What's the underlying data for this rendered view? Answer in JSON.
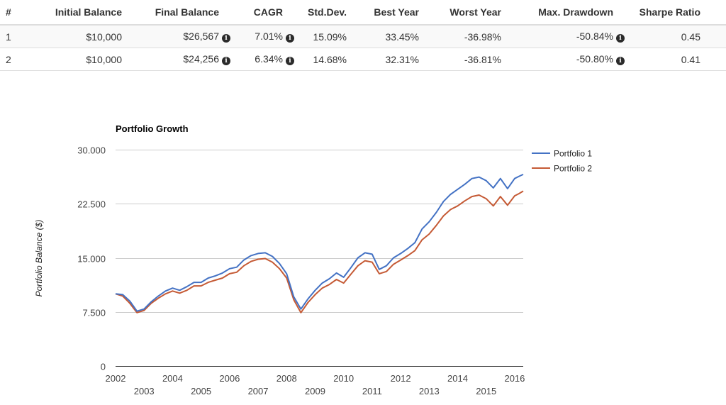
{
  "table": {
    "headers": [
      "#",
      "Initial Balance",
      "Final Balance",
      "CAGR",
      "Std.Dev.",
      "Best Year",
      "Worst Year",
      "Max. Drawdown",
      "Sharpe Ratio"
    ],
    "rows": [
      {
        "index": "1",
        "initial": "$10,000",
        "final": "$26,567",
        "cagr": "7.01%",
        "std": "15.09%",
        "best": "33.45%",
        "worst": "-36.98%",
        "drawdown": "-50.84%",
        "sharpe": "0.45"
      },
      {
        "index": "2",
        "initial": "$10,000",
        "final": "$24,256",
        "cagr": "6.34%",
        "std": "14.68%",
        "best": "32.31%",
        "worst": "-36.81%",
        "drawdown": "-50.80%",
        "sharpe": "0.41"
      }
    ],
    "info_icon_glyph": "i"
  },
  "chart_data": {
    "type": "line",
    "title": "Portfolio Growth",
    "xlabel": "",
    "ylabel": "Portfolio Balance ($)",
    "ylim": [
      0,
      30000
    ],
    "xlim": [
      2002.0,
      2016.3
    ],
    "y_ticks": [
      0,
      7500,
      15000,
      22500,
      30000
    ],
    "y_tick_labels": [
      "0",
      "7.500",
      "15.000",
      "22.500",
      "30.000"
    ],
    "x_tick_labels_top": [
      "2002",
      "2004",
      "2006",
      "2008",
      "2010",
      "2012",
      "2014",
      "2016"
    ],
    "x_tick_labels_bottom": [
      "2003",
      "2005",
      "2007",
      "2009",
      "2011",
      "2013",
      "2015"
    ],
    "legend_position": "top-right",
    "grid": true,
    "series": [
      {
        "name": "Portfolio 1",
        "color": "#4472c4",
        "x": [
          2002.0,
          2002.25,
          2002.5,
          2002.75,
          2003.0,
          2003.25,
          2003.5,
          2003.75,
          2004.0,
          2004.25,
          2004.5,
          2004.75,
          2005.0,
          2005.25,
          2005.5,
          2005.75,
          2006.0,
          2006.25,
          2006.5,
          2006.75,
          2007.0,
          2007.25,
          2007.5,
          2007.75,
          2008.0,
          2008.25,
          2008.5,
          2008.75,
          2009.0,
          2009.25,
          2009.5,
          2009.75,
          2010.0,
          2010.25,
          2010.5,
          2010.75,
          2011.0,
          2011.25,
          2011.5,
          2011.75,
          2012.0,
          2012.25,
          2012.5,
          2012.75,
          2013.0,
          2013.25,
          2013.5,
          2013.75,
          2014.0,
          2014.25,
          2014.5,
          2014.75,
          2015.0,
          2015.25,
          2015.5,
          2015.75,
          2016.0,
          2016.15,
          2016.3
        ],
        "values": [
          10000,
          9900,
          9000,
          7600,
          7900,
          8900,
          9700,
          10400,
          10800,
          10500,
          11000,
          11600,
          11600,
          12200,
          12500,
          12900,
          13500,
          13700,
          14700,
          15300,
          15600,
          15700,
          15200,
          14200,
          12800,
          9600,
          7900,
          9300,
          10500,
          11500,
          12100,
          12900,
          12300,
          13600,
          15000,
          15700,
          15500,
          13400,
          13900,
          15000,
          15600,
          16300,
          17100,
          19000,
          20000,
          21300,
          22800,
          23800,
          24500,
          25200,
          26000,
          26200,
          25700,
          24700,
          26000,
          24600,
          26000,
          26300,
          26567
        ]
      },
      {
        "name": "Portfolio 2",
        "color": "#c55a35",
        "x": [
          2002.0,
          2002.25,
          2002.5,
          2002.75,
          2003.0,
          2003.25,
          2003.5,
          2003.75,
          2004.0,
          2004.25,
          2004.5,
          2004.75,
          2005.0,
          2005.25,
          2005.5,
          2005.75,
          2006.0,
          2006.25,
          2006.5,
          2006.75,
          2007.0,
          2007.25,
          2007.5,
          2007.75,
          2008.0,
          2008.25,
          2008.5,
          2008.75,
          2009.0,
          2009.25,
          2009.5,
          2009.75,
          2010.0,
          2010.25,
          2010.5,
          2010.75,
          2011.0,
          2011.25,
          2011.5,
          2011.75,
          2012.0,
          2012.25,
          2012.5,
          2012.75,
          2013.0,
          2013.25,
          2013.5,
          2013.75,
          2014.0,
          2014.25,
          2014.5,
          2014.75,
          2015.0,
          2015.25,
          2015.5,
          2015.75,
          2016.0,
          2016.15,
          2016.3
        ],
        "values": [
          10000,
          9700,
          8700,
          7400,
          7700,
          8700,
          9400,
          10000,
          10400,
          10100,
          10500,
          11100,
          11100,
          11600,
          11900,
          12200,
          12800,
          13000,
          13900,
          14500,
          14800,
          14900,
          14400,
          13500,
          12200,
          9200,
          7400,
          8800,
          9900,
          10800,
          11300,
          12000,
          11500,
          12700,
          13900,
          14600,
          14400,
          12800,
          13100,
          14100,
          14700,
          15300,
          16000,
          17500,
          18300,
          19500,
          20800,
          21700,
          22200,
          22900,
          23500,
          23700,
          23200,
          22200,
          23500,
          22300,
          23600,
          23900,
          24256
        ]
      }
    ]
  }
}
